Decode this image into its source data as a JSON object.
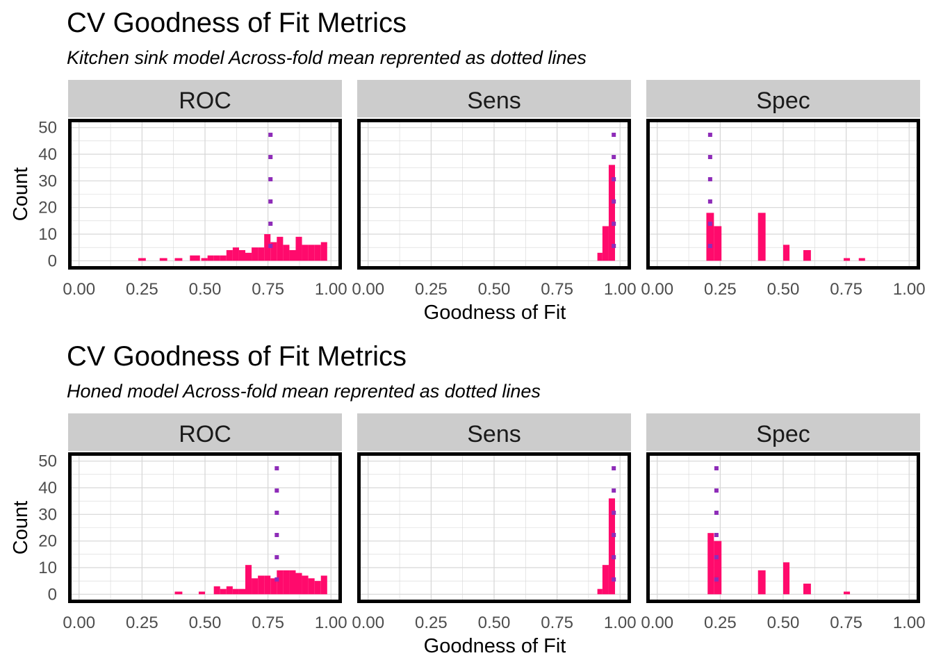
{
  "colors": {
    "bar": "#FF0A6C",
    "mean_line": "#8E2CB8",
    "strip_bg": "#CCCCCC",
    "grid": "#D6D6D6",
    "panel_border": "#000000"
  },
  "chart_data": [
    {
      "type": "bar",
      "title": "CV Goodness of Fit Metrics",
      "subtitle": "Kitchen sink model  Across-fold mean reprented as dotted lines",
      "xlabel": "Goodness of Fit",
      "ylabel": "Count",
      "xlim": [
        0,
        1
      ],
      "ylim": [
        0,
        50
      ],
      "x_ticks": [
        "0.00",
        "0.25",
        "0.50",
        "0.75",
        "1.00"
      ],
      "y_ticks": [
        "0",
        "10",
        "20",
        "30",
        "40",
        "50"
      ],
      "panels": [
        {
          "name": "ROC",
          "mean": 0.76,
          "bars": [
            {
              "x": 0.235,
              "w": 0.03,
              "h": 1
            },
            {
              "x": 0.32,
              "w": 0.03,
              "h": 1
            },
            {
              "x": 0.38,
              "w": 0.03,
              "h": 1
            },
            {
              "x": 0.44,
              "w": 0.02,
              "h": 2
            },
            {
              "x": 0.46,
              "w": 0.02,
              "h": 2
            },
            {
              "x": 0.485,
              "w": 0.025,
              "h": 1
            },
            {
              "x": 0.51,
              "w": 0.025,
              "h": 2
            },
            {
              "x": 0.535,
              "w": 0.025,
              "h": 2
            },
            {
              "x": 0.56,
              "w": 0.025,
              "h": 2
            },
            {
              "x": 0.585,
              "w": 0.025,
              "h": 4
            },
            {
              "x": 0.61,
              "w": 0.025,
              "h": 5
            },
            {
              "x": 0.635,
              "w": 0.025,
              "h": 4
            },
            {
              "x": 0.66,
              "w": 0.025,
              "h": 3
            },
            {
              "x": 0.685,
              "w": 0.025,
              "h": 5
            },
            {
              "x": 0.71,
              "w": 0.025,
              "h": 5
            },
            {
              "x": 0.735,
              "w": 0.025,
              "h": 10
            },
            {
              "x": 0.76,
              "w": 0.025,
              "h": 7
            },
            {
              "x": 0.785,
              "w": 0.025,
              "h": 9
            },
            {
              "x": 0.81,
              "w": 0.025,
              "h": 6
            },
            {
              "x": 0.835,
              "w": 0.025,
              "h": 4
            },
            {
              "x": 0.86,
              "w": 0.025,
              "h": 9
            },
            {
              "x": 0.885,
              "w": 0.025,
              "h": 6
            },
            {
              "x": 0.91,
              "w": 0.025,
              "h": 6
            },
            {
              "x": 0.935,
              "w": 0.025,
              "h": 6
            },
            {
              "x": 0.96,
              "w": 0.025,
              "h": 7
            }
          ]
        },
        {
          "name": "Sens",
          "mean": 0.975,
          "bars": [
            {
              "x": 0.91,
              "w": 0.02,
              "h": 3
            },
            {
              "x": 0.93,
              "w": 0.025,
              "h": 13
            },
            {
              "x": 0.955,
              "w": 0.025,
              "h": 36
            }
          ]
        },
        {
          "name": "Spec",
          "mean": 0.21,
          "bars": [
            {
              "x": 0.195,
              "w": 0.03,
              "h": 18
            },
            {
              "x": 0.225,
              "w": 0.03,
              "h": 13
            },
            {
              "x": 0.4,
              "w": 0.03,
              "h": 18
            },
            {
              "x": 0.5,
              "w": 0.025,
              "h": 6
            },
            {
              "x": 0.58,
              "w": 0.03,
              "h": 4
            },
            {
              "x": 0.74,
              "w": 0.025,
              "h": 1
            },
            {
              "x": 0.8,
              "w": 0.025,
              "h": 1
            }
          ]
        }
      ]
    },
    {
      "type": "bar",
      "title": "CV Goodness of Fit Metrics",
      "subtitle": "Honed model  Across-fold mean reprented as dotted lines",
      "xlabel": "Goodness of Fit",
      "ylabel": "Count",
      "xlim": [
        0,
        1
      ],
      "ylim": [
        0,
        50
      ],
      "x_ticks": [
        "0.00",
        "0.25",
        "0.50",
        "0.75",
        "1.00"
      ],
      "y_ticks": [
        "0",
        "10",
        "20",
        "30",
        "40",
        "50"
      ],
      "panels": [
        {
          "name": "ROC",
          "mean": 0.785,
          "bars": [
            {
              "x": 0.38,
              "w": 0.03,
              "h": 1
            },
            {
              "x": 0.475,
              "w": 0.025,
              "h": 1
            },
            {
              "x": 0.535,
              "w": 0.025,
              "h": 3
            },
            {
              "x": 0.56,
              "w": 0.025,
              "h": 2
            },
            {
              "x": 0.585,
              "w": 0.025,
              "h": 3
            },
            {
              "x": 0.61,
              "w": 0.025,
              "h": 2
            },
            {
              "x": 0.635,
              "w": 0.025,
              "h": 2
            },
            {
              "x": 0.66,
              "w": 0.025,
              "h": 11
            },
            {
              "x": 0.685,
              "w": 0.025,
              "h": 6
            },
            {
              "x": 0.71,
              "w": 0.025,
              "h": 7
            },
            {
              "x": 0.735,
              "w": 0.025,
              "h": 7
            },
            {
              "x": 0.76,
              "w": 0.025,
              "h": 6
            },
            {
              "x": 0.785,
              "w": 0.025,
              "h": 9
            },
            {
              "x": 0.81,
              "w": 0.025,
              "h": 9
            },
            {
              "x": 0.835,
              "w": 0.025,
              "h": 9
            },
            {
              "x": 0.86,
              "w": 0.025,
              "h": 8
            },
            {
              "x": 0.885,
              "w": 0.025,
              "h": 7
            },
            {
              "x": 0.91,
              "w": 0.025,
              "h": 6
            },
            {
              "x": 0.935,
              "w": 0.025,
              "h": 5
            },
            {
              "x": 0.96,
              "w": 0.025,
              "h": 7
            }
          ]
        },
        {
          "name": "Sens",
          "mean": 0.975,
          "bars": [
            {
              "x": 0.91,
              "w": 0.02,
              "h": 2
            },
            {
              "x": 0.93,
              "w": 0.025,
              "h": 11
            },
            {
              "x": 0.955,
              "w": 0.025,
              "h": 36
            }
          ]
        },
        {
          "name": "Spec",
          "mean": 0.235,
          "bars": [
            {
              "x": 0.2,
              "w": 0.025,
              "h": 23
            },
            {
              "x": 0.225,
              "w": 0.03,
              "h": 20
            },
            {
              "x": 0.4,
              "w": 0.03,
              "h": 9
            },
            {
              "x": 0.5,
              "w": 0.025,
              "h": 12
            },
            {
              "x": 0.58,
              "w": 0.03,
              "h": 4
            },
            {
              "x": 0.74,
              "w": 0.025,
              "h": 1
            }
          ]
        }
      ]
    }
  ]
}
